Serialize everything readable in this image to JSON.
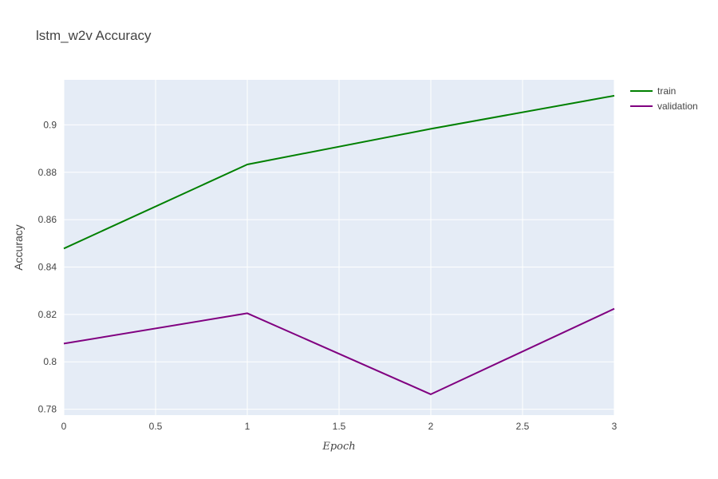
{
  "chart_data": {
    "type": "line",
    "title": "lstm_w2v Accuracy",
    "xlabel": "Epoch",
    "ylabel": "Accuracy",
    "x": [
      0,
      1,
      2,
      3
    ],
    "xlim": [
      0,
      3
    ],
    "ylim": [
      0.7775,
      0.919
    ],
    "xticks": [
      0,
      0.5,
      1,
      1.5,
      2,
      2.5,
      3
    ],
    "xtick_labels": [
      "0",
      "0.5",
      "1",
      "1.5",
      "2",
      "2.5",
      "3"
    ],
    "yticks": [
      0.78,
      0.8,
      0.82,
      0.84,
      0.86,
      0.88,
      0.9
    ],
    "ytick_labels": [
      "0.78",
      "0.8",
      "0.82",
      "0.84",
      "0.86",
      "0.88",
      "0.9"
    ],
    "grid": true,
    "legend_position": "top-right",
    "plot_background": "#e5ecf6",
    "series": [
      {
        "name": "train",
        "color": "#008000",
        "values": [
          0.8478,
          0.8833,
          0.8983,
          0.9123
        ]
      },
      {
        "name": "validation",
        "color": "#800080",
        "values": [
          0.8077,
          0.8205,
          0.7863,
          0.8224
        ]
      }
    ]
  }
}
